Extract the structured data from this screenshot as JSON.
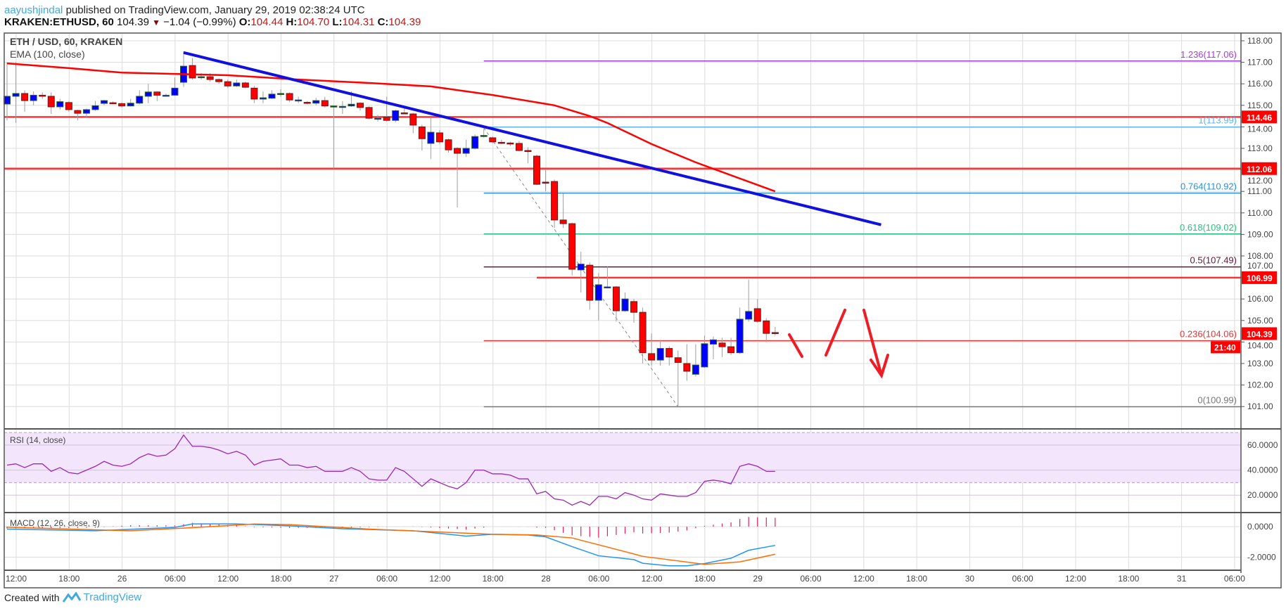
{
  "header": {
    "author": "aayushjindal",
    "published": "published on TradingView.com, January 29, 2019 02:38:24 UTC",
    "symbol": "KRAKEN:ETHUSD, 60",
    "last": "104.39",
    "change": "−1.04 (−0.99%)",
    "change_icon": "triangle-down-icon",
    "o_label": "O:",
    "o": "104.44",
    "h_label": "H:",
    "h": "104.70",
    "l_label": "L:",
    "l": "104.31",
    "c_label": "C:",
    "c": "104.39"
  },
  "footer": {
    "created_with": "Created with",
    "brand": "TradingView"
  },
  "colors": {
    "up": "#0000ff",
    "down": "#ff0000",
    "ema": "#ff0000",
    "trendline": "#1010e0",
    "rsi": "#9c27b0",
    "macd": "#2196f3",
    "signal": "#ff6d00",
    "histogram": "#e91e63",
    "badge": "#ff0000"
  },
  "chart_data": {
    "type": "candlestick",
    "title": "ETH / USD, 60, KRAKEN",
    "timeframe_minutes": 60,
    "price_axis": {
      "ticks": [
        "101.00",
        "102.00",
        "103.00",
        "104.00",
        "105.00",
        "106.00",
        "107.00",
        "108.00",
        "109.00",
        "110.00",
        "111.00",
        "112.00",
        "113.00",
        "114.00",
        "115.00",
        "116.00",
        "117.00",
        "118.00"
      ],
      "ylim": [
        100.0,
        118.4
      ]
    },
    "time_axis": {
      "ticks": [
        "12:00",
        "18:00",
        "26",
        "06:00",
        "12:00",
        "18:00",
        "27",
        "06:00",
        "12:00",
        "18:00",
        "28",
        "06:00",
        "12:00",
        "18:00",
        "29",
        "06:00",
        "12:00",
        "18:00",
        "30",
        "06:00",
        "12:00",
        "18:00",
        "31",
        "06:00"
      ]
    },
    "grid": true,
    "candles_columns": [
      "time",
      "open",
      "high",
      "low",
      "close"
    ],
    "candles": [
      [
        "01-25 11:00",
        115.06,
        117.0,
        114.3,
        115.42
      ],
      [
        "01-25 12:00",
        115.42,
        117.0,
        114.18,
        115.55
      ],
      [
        "01-25 13:00",
        115.55,
        115.7,
        114.7,
        115.22
      ],
      [
        "01-25 14:00",
        115.22,
        115.65,
        115.0,
        115.47
      ],
      [
        "01-25 15:00",
        115.47,
        115.6,
        115.3,
        115.45
      ],
      [
        "01-25 16:00",
        115.42,
        115.6,
        114.6,
        114.93
      ],
      [
        "01-25 17:00",
        114.93,
        115.3,
        114.8,
        115.17
      ],
      [
        "01-25 18:00",
        115.13,
        115.2,
        114.7,
        114.8
      ],
      [
        "01-25 19:00",
        114.76,
        114.8,
        114.3,
        114.63
      ],
      [
        "01-25 20:00",
        114.63,
        114.85,
        114.4,
        114.8
      ],
      [
        "01-25 21:00",
        114.8,
        115.2,
        114.75,
        114.98
      ],
      [
        "01-25 22:00",
        115.09,
        115.25,
        115.0,
        115.22
      ],
      [
        "01-25 23:00",
        115.12,
        115.18,
        115.05,
        115.08
      ],
      [
        "01-26 00:00",
        115.08,
        115.12,
        114.9,
        114.97
      ],
      [
        "01-26 01:00",
        114.97,
        115.3,
        114.95,
        115.1
      ],
      [
        "01-26 02:00",
        115.1,
        115.7,
        115.05,
        115.42
      ],
      [
        "01-26 03:00",
        115.42,
        116.0,
        115.1,
        115.62
      ],
      [
        "01-26 04:00",
        115.62,
        115.65,
        115.2,
        115.47
      ],
      [
        "01-26 05:00",
        115.47,
        115.55,
        115.4,
        115.47
      ],
      [
        "01-26 06:00",
        115.47,
        116.3,
        115.45,
        115.8
      ],
      [
        "01-26 07:00",
        116.07,
        117.5,
        115.85,
        116.82
      ],
      [
        "01-26 08:00",
        116.85,
        117.2,
        116.2,
        116.27
      ],
      [
        "01-26 09:00",
        116.33,
        116.5,
        116.2,
        116.33
      ],
      [
        "01-26 10:00",
        116.33,
        116.5,
        116.1,
        116.2
      ],
      [
        "01-26 11:00",
        116.2,
        116.25,
        116.0,
        116.1
      ],
      [
        "01-26 12:00",
        116.1,
        116.2,
        115.8,
        115.9
      ],
      [
        "01-26 13:00",
        115.9,
        116.2,
        115.85,
        116.04
      ],
      [
        "01-26 14:00",
        116.04,
        116.1,
        115.8,
        115.84
      ],
      [
        "01-26 15:00",
        115.8,
        115.9,
        115.1,
        115.29
      ],
      [
        "01-26 16:00",
        115.29,
        115.65,
        115.1,
        115.35
      ],
      [
        "01-26 17:00",
        115.33,
        115.7,
        115.3,
        115.52
      ],
      [
        "01-26 18:00",
        115.55,
        115.75,
        115.4,
        115.55
      ],
      [
        "01-26 19:00",
        115.55,
        115.6,
        115.15,
        115.25
      ],
      [
        "01-26 20:00",
        115.25,
        115.4,
        115.1,
        115.25
      ],
      [
        "01-26 21:00",
        115.14,
        115.2,
        115.05,
        115.12
      ],
      [
        "01-26 22:00",
        115.1,
        115.35,
        115.0,
        115.22
      ],
      [
        "01-26 23:00",
        115.22,
        115.4,
        114.9,
        114.97
      ],
      [
        "01-27 00:00",
        114.92,
        115.0,
        112.05,
        114.97
      ],
      [
        "01-27 01:00",
        114.95,
        115.2,
        114.6,
        114.95
      ],
      [
        "01-27 02:00",
        114.97,
        115.65,
        114.92,
        115.05
      ],
      [
        "01-27 03:00",
        115.1,
        115.15,
        114.75,
        114.9
      ],
      [
        "01-27 04:00",
        114.9,
        114.95,
        114.35,
        114.4
      ],
      [
        "01-27 05:00",
        114.4,
        114.55,
        114.25,
        114.4
      ],
      [
        "01-27 06:00",
        114.45,
        115.4,
        114.25,
        114.3
      ],
      [
        "01-27 07:00",
        114.3,
        114.8,
        114.2,
        114.75
      ],
      [
        "01-27 08:00",
        114.65,
        114.9,
        114.6,
        114.62
      ],
      [
        "01-27 09:00",
        114.6,
        114.65,
        113.7,
        114.08
      ],
      [
        "01-27 10:00",
        114.0,
        114.1,
        112.9,
        113.45
      ],
      [
        "01-27 11:00",
        113.23,
        114.4,
        112.5,
        113.75
      ],
      [
        "01-27 12:00",
        113.72,
        113.85,
        113.2,
        113.3
      ],
      [
        "01-27 13:00",
        113.4,
        113.45,
        112.8,
        112.93
      ],
      [
        "01-27 14:00",
        113.0,
        113.05,
        110.25,
        112.77
      ],
      [
        "01-27 15:00",
        112.77,
        113.4,
        112.6,
        113.0
      ],
      [
        "01-27 16:00",
        113.0,
        113.65,
        112.95,
        113.55
      ],
      [
        "01-27 17:00",
        113.55,
        113.9,
        113.5,
        113.6
      ],
      [
        "01-27 18:00",
        113.49,
        113.55,
        113.25,
        113.3
      ],
      [
        "01-27 19:00",
        113.28,
        113.4,
        113.2,
        113.25
      ],
      [
        "01-27 20:00",
        113.25,
        113.3,
        113.1,
        113.2
      ],
      [
        "01-27 21:00",
        113.23,
        113.35,
        112.85,
        112.9
      ],
      [
        "01-27 22:00",
        112.9,
        113.05,
        112.3,
        112.88
      ],
      [
        "01-27 23:00",
        112.64,
        112.7,
        111.3,
        111.33
      ],
      [
        "01-28 00:00",
        111.43,
        112.0,
        111.0,
        111.4
      ],
      [
        "01-28 01:00",
        111.46,
        111.55,
        109.3,
        109.67
      ],
      [
        "01-28 02:00",
        109.67,
        110.9,
        109.3,
        109.5
      ],
      [
        "01-28 03:00",
        109.5,
        109.55,
        107.1,
        107.38
      ],
      [
        "01-28 04:00",
        107.35,
        108.2,
        106.3,
        107.62
      ],
      [
        "01-28 05:00",
        107.57,
        107.7,
        105.5,
        105.94
      ],
      [
        "01-28 06:00",
        105.94,
        107.2,
        105.0,
        106.66
      ],
      [
        "01-28 07:00",
        106.56,
        107.5,
        106.5,
        106.56
      ],
      [
        "01-28 08:00",
        106.56,
        106.6,
        104.95,
        105.45
      ],
      [
        "01-28 09:00",
        105.45,
        106.3,
        105.4,
        106.0
      ],
      [
        "01-28 10:00",
        105.88,
        106.0,
        104.9,
        105.38
      ],
      [
        "01-28 11:00",
        105.38,
        105.6,
        103.0,
        103.5
      ],
      [
        "01-28 12:00",
        103.46,
        104.4,
        102.9,
        103.16
      ],
      [
        "01-28 13:00",
        103.16,
        104.1,
        102.9,
        103.7
      ],
      [
        "01-28 14:00",
        103.7,
        103.8,
        102.9,
        103.3
      ],
      [
        "01-28 15:00",
        103.27,
        103.6,
        100.99,
        103.05
      ],
      [
        "01-28 16:00",
        103.0,
        103.9,
        102.2,
        102.64
      ],
      [
        "01-28 17:00",
        102.5,
        103.9,
        102.4,
        102.93
      ],
      [
        "01-28 18:00",
        102.84,
        104.3,
        102.8,
        103.92
      ],
      [
        "01-28 19:00",
        103.9,
        104.25,
        103.2,
        104.1
      ],
      [
        "01-28 20:00",
        103.95,
        104.2,
        103.3,
        103.78
      ],
      [
        "01-28 21:00",
        103.78,
        104.2,
        103.4,
        103.5
      ],
      [
        "01-28 22:00",
        103.5,
        105.6,
        103.45,
        105.06
      ],
      [
        "01-28 23:00",
        105.06,
        106.9,
        104.95,
        105.42
      ],
      [
        "01-29 00:00",
        105.55,
        106.0,
        104.9,
        104.96
      ],
      [
        "01-29 01:00",
        104.98,
        105.1,
        104.0,
        104.4
      ],
      [
        "01-29 02:00",
        104.44,
        104.7,
        104.31,
        104.39
      ]
    ],
    "ema": {
      "label": "EMA (100, close)",
      "points": [
        [
          "01-25 11:00",
          116.95
        ],
        [
          "01-25 18:00",
          116.73
        ],
        [
          "01-26 00:00",
          116.52
        ],
        [
          "01-26 06:00",
          116.46
        ],
        [
          "01-26 12:00",
          116.4
        ],
        [
          "01-26 20:00",
          116.2
        ],
        [
          "01-27 04:00",
          116.04
        ],
        [
          "01-27 11:00",
          115.88
        ],
        [
          "01-27 15:00",
          115.65
        ],
        [
          "01-27 18:00",
          115.48
        ],
        [
          "01-28 01:00",
          115.0
        ],
        [
          "01-28 05:00",
          114.5
        ],
        [
          "01-28 07:00",
          114.18
        ],
        [
          "01-28 12:00",
          113.2
        ],
        [
          "01-28 17:00",
          112.35
        ],
        [
          "01-29 02:00",
          111.0
        ]
      ]
    },
    "trendline": [
      [
        "01-26 07:00",
        117.45
      ],
      [
        "01-29 14:00",
        109.45
      ]
    ],
    "swing_line": [
      [
        "01-27 17:00",
        113.95
      ],
      [
        "01-28 15:00",
        100.99
      ]
    ],
    "horizontal_levels": [
      {
        "price": 114.46,
        "label": "114.46",
        "from": "01-25 10:40"
      },
      {
        "price": 112.06,
        "label": "112.06",
        "from": "01-25 10:40"
      },
      {
        "price": 106.99,
        "label": "106.99",
        "from": "01-27 23:00"
      }
    ],
    "fibonacci": {
      "from": "01-27 17:00",
      "levels": [
        {
          "ratio": "1.236",
          "price": 117.06,
          "label": "1.236(117.06)",
          "color": "#a33fd6"
        },
        {
          "ratio": "1",
          "price": 113.99,
          "label": "1(113.99)",
          "color": "#5fb4e6"
        },
        {
          "ratio": "0.764",
          "price": 110.92,
          "label": "0.764(110.92)",
          "color": "#2a90d4"
        },
        {
          "ratio": "0.618",
          "price": 109.02,
          "label": "0.618(109.02)",
          "color": "#26c281"
        },
        {
          "ratio": "0.5",
          "price": 107.49,
          "label": "0.5(107.49)",
          "color": "#5a1a3a"
        },
        {
          "ratio": "0.236",
          "price": 104.06,
          "label": "0.236(104.06)",
          "color": "#d63a3a"
        },
        {
          "ratio": "0",
          "price": 100.99,
          "label": "0(100.99)",
          "color": "#777777"
        }
      ]
    },
    "last_price_badge": {
      "price": 104.39,
      "label": "104.39",
      "countdown": "21:40"
    },
    "rsi": {
      "label": "RSI (14, close)",
      "band": [
        30,
        70
      ],
      "ticks": [
        {
          "v": 60,
          "label": "60.0000"
        },
        {
          "v": 40,
          "label": "40.0000"
        },
        {
          "v": 20,
          "label": "20.0000"
        }
      ],
      "values": [
        44,
        45,
        42,
        45,
        45,
        39,
        42,
        38,
        37,
        40,
        43,
        47,
        44,
        43,
        45,
        50,
        53,
        51,
        52,
        57,
        68,
        59,
        59,
        58,
        56,
        53,
        55,
        52,
        44,
        47,
        48,
        49,
        44,
        44,
        42,
        43,
        39,
        39,
        39,
        42,
        39,
        33,
        32,
        32,
        42,
        39,
        33,
        27,
        33,
        30,
        27,
        25,
        30,
        40,
        40,
        37,
        37,
        36,
        33,
        33,
        21,
        23,
        17,
        16,
        12,
        15,
        12,
        19,
        19,
        17,
        22,
        20,
        17,
        16,
        21,
        20,
        19,
        19,
        22,
        31,
        32,
        31,
        29,
        43,
        45,
        43,
        39,
        39
      ]
    },
    "macd": {
      "label": "MACD (12, 26, close, 9)",
      "ticks": [
        {
          "v": 0,
          "label": "0.0000"
        },
        {
          "v": -2,
          "label": "-2.0000"
        }
      ],
      "macd_points": [
        [
          "01-25 11:00",
          -0.16
        ],
        [
          "01-25 21:00",
          -0.27
        ],
        [
          "01-26 06:00",
          -0.05
        ],
        [
          "01-26 08:00",
          0.18
        ],
        [
          "01-26 13:00",
          0.18
        ],
        [
          "01-26 19:00",
          0.05
        ],
        [
          "01-27 01:00",
          -0.14
        ],
        [
          "01-27 09:00",
          -0.27
        ],
        [
          "01-27 15:00",
          -0.62
        ],
        [
          "01-27 18:00",
          -0.5
        ],
        [
          "01-27 22:00",
          -0.55
        ],
        [
          "01-28 00:00",
          -0.67
        ],
        [
          "01-28 03:00",
          -1.31
        ],
        [
          "01-28 06:00",
          -1.91
        ],
        [
          "01-28 10:00",
          -2.16
        ],
        [
          "01-28 11:00",
          -2.4
        ],
        [
          "01-28 14:00",
          -2.57
        ],
        [
          "01-28 16:00",
          -2.57
        ],
        [
          "01-28 18:00",
          -2.42
        ],
        [
          "01-28 21:00",
          -2.07
        ],
        [
          "01-28 23:00",
          -1.55
        ],
        [
          "01-29 02:00",
          -1.23
        ]
      ],
      "signal_points": [
        [
          "01-25 11:00",
          -0.04
        ],
        [
          "01-26 01:00",
          -0.27
        ],
        [
          "01-26 08:00",
          -0.07
        ],
        [
          "01-26 15:00",
          0.17
        ],
        [
          "01-26 19:00",
          0.13
        ],
        [
          "01-27 04:00",
          -0.16
        ],
        [
          "01-27 18:00",
          -0.5
        ],
        [
          "01-27 23:00",
          -0.55
        ],
        [
          "01-28 03:00",
          -0.74
        ],
        [
          "01-28 10:00",
          -1.79
        ],
        [
          "01-28 11:00",
          -1.95
        ],
        [
          "01-28 18:00",
          -2.47
        ],
        [
          "01-28 22:00",
          -2.31
        ],
        [
          "01-29 02:00",
          -1.81
        ]
      ]
    }
  }
}
